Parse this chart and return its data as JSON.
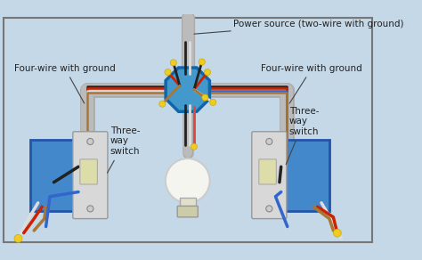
{
  "bg_color": "#c5d8e8",
  "border_color": "#777777",
  "labels": {
    "power_source": "Power source (two-wire with ground)",
    "four_wire_left": "Four-wire with ground",
    "four_wire_right": "Four-wire with ground",
    "three_way_left": "Three-\nway\nswitch",
    "three_way_right": "Three-\nway\nswitch"
  },
  "wire_colors": {
    "black": "#222222",
    "red": "#cc2200",
    "white": "#dddddd",
    "blue": "#3366cc",
    "ground": "#aa7733",
    "conduit": "#999999"
  },
  "junction_color": "#4499cc",
  "junction_edge": "#1166aa",
  "switch_box_color": "#4488cc",
  "switch_box_edge": "#2255aa",
  "switch_plate_color": "#cccccc",
  "switch_toggle_color": "#ddddaa",
  "bulb_color": "#f0f0f0"
}
